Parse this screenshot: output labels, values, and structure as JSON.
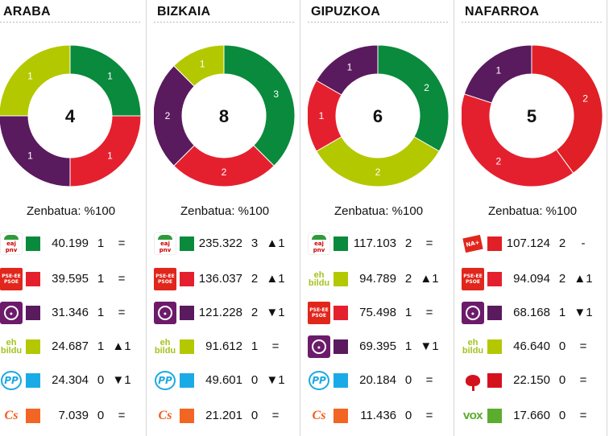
{
  "chart_data": [
    {
      "type": "pie",
      "title": "ARABA",
      "center_total": "4",
      "counted_label": "Zenbatua: %100",
      "slices": [
        {
          "party": "EAJ-PNV",
          "seats": 1,
          "color": "#0a8a3c"
        },
        {
          "party": "PSE-EE",
          "seats": 1,
          "color": "#e5202e"
        },
        {
          "party": "Podemos",
          "seats": 1,
          "color": "#5a1a5e"
        },
        {
          "party": "EH Bildu",
          "seats": 1,
          "color": "#b4c800"
        }
      ],
      "rows": [
        {
          "logo": "pnv-logo",
          "color": "#0a8a3c",
          "votes": "40.199",
          "seats": "1",
          "change": "="
        },
        {
          "logo": "pse-logo",
          "color": "#e5202e",
          "votes": "39.595",
          "seats": "1",
          "change": "="
        },
        {
          "logo": "podemos-logo",
          "color": "#5a1a5e",
          "votes": "31.346",
          "seats": "1",
          "change": "="
        },
        {
          "logo": "bildu-logo",
          "color": "#b4c800",
          "votes": "24.687",
          "seats": "1",
          "change": "▲1"
        },
        {
          "logo": "pp-logo",
          "color": "#1aabe6",
          "votes": "24.304",
          "seats": "0",
          "change": "▼1"
        },
        {
          "logo": "cs-logo",
          "color": "#f26522",
          "votes": "7.039",
          "seats": "0",
          "change": "="
        }
      ]
    },
    {
      "type": "pie",
      "title": "BIZKAIA",
      "center_total": "8",
      "counted_label": "Zenbatua: %100",
      "slices": [
        {
          "party": "EAJ-PNV",
          "seats": 3,
          "color": "#0a8a3c"
        },
        {
          "party": "PSE-EE",
          "seats": 2,
          "color": "#e5202e"
        },
        {
          "party": "Podemos",
          "seats": 2,
          "color": "#5a1a5e"
        },
        {
          "party": "EH Bildu",
          "seats": 1,
          "color": "#b4c800"
        }
      ],
      "rows": [
        {
          "logo": "pnv-logo",
          "color": "#0a8a3c",
          "votes": "235.322",
          "seats": "3",
          "change": "▲1"
        },
        {
          "logo": "pse-logo",
          "color": "#e5202e",
          "votes": "136.037",
          "seats": "2",
          "change": "▲1"
        },
        {
          "logo": "podemos-logo",
          "color": "#5a1a5e",
          "votes": "121.228",
          "seats": "2",
          "change": "▼1"
        },
        {
          "logo": "bildu-logo",
          "color": "#b4c800",
          "votes": "91.612",
          "seats": "1",
          "change": "="
        },
        {
          "logo": "pp-logo",
          "color": "#1aabe6",
          "votes": "49.601",
          "seats": "0",
          "change": "▼1"
        },
        {
          "logo": "cs-logo",
          "color": "#f26522",
          "votes": "21.201",
          "seats": "0",
          "change": "="
        }
      ]
    },
    {
      "type": "pie",
      "title": "GIPUZKOA",
      "center_total": "6",
      "counted_label": "Zenbatua: %100",
      "slices": [
        {
          "party": "EAJ-PNV",
          "seats": 2,
          "color": "#0a8a3c"
        },
        {
          "party": "EH Bildu",
          "seats": 2,
          "color": "#b4c800"
        },
        {
          "party": "PSE-EE",
          "seats": 1,
          "color": "#e5202e"
        },
        {
          "party": "Podemos",
          "seats": 1,
          "color": "#5a1a5e"
        }
      ],
      "rows": [
        {
          "logo": "pnv-logo",
          "color": "#0a8a3c",
          "votes": "117.103",
          "seats": "2",
          "change": "="
        },
        {
          "logo": "bildu-logo",
          "color": "#b4c800",
          "votes": "94.789",
          "seats": "2",
          "change": "▲1"
        },
        {
          "logo": "pse-logo",
          "color": "#e5202e",
          "votes": "75.498",
          "seats": "1",
          "change": "="
        },
        {
          "logo": "podemos-logo",
          "color": "#5a1a5e",
          "votes": "69.395",
          "seats": "1",
          "change": "▼1"
        },
        {
          "logo": "pp-logo",
          "color": "#1aabe6",
          "votes": "20.184",
          "seats": "0",
          "change": "="
        },
        {
          "logo": "cs-logo",
          "color": "#f26522",
          "votes": "11.436",
          "seats": "0",
          "change": "="
        }
      ]
    },
    {
      "type": "pie",
      "title": "NAFARROA",
      "center_total": "5",
      "counted_label": "Zenbatua: %100",
      "slices": [
        {
          "party": "NA+",
          "seats": 2,
          "color": "#e01f26"
        },
        {
          "party": "PSN-PSOE",
          "seats": 2,
          "color": "#e5202e"
        },
        {
          "party": "Podemos",
          "seats": 1,
          "color": "#5a1a5e"
        }
      ],
      "rows": [
        {
          "logo": "na-plus-logo",
          "color": "#e01f26",
          "votes": "107.124",
          "seats": "2",
          "change": "-"
        },
        {
          "logo": "pse-logo",
          "color": "#e5202e",
          "votes": "94.094",
          "seats": "2",
          "change": "▲1"
        },
        {
          "logo": "podemos-logo",
          "color": "#5a1a5e",
          "votes": "68.168",
          "seats": "1",
          "change": "▼1"
        },
        {
          "logo": "bildu-logo",
          "color": "#b4c800",
          "votes": "46.640",
          "seats": "0",
          "change": "="
        },
        {
          "logo": "pcte-logo",
          "color": "#d4121e",
          "votes": "22.150",
          "seats": "0",
          "change": "="
        },
        {
          "logo": "vox-logo",
          "color": "#5cac2e",
          "votes": "17.660",
          "seats": "0",
          "change": "="
        }
      ]
    }
  ]
}
